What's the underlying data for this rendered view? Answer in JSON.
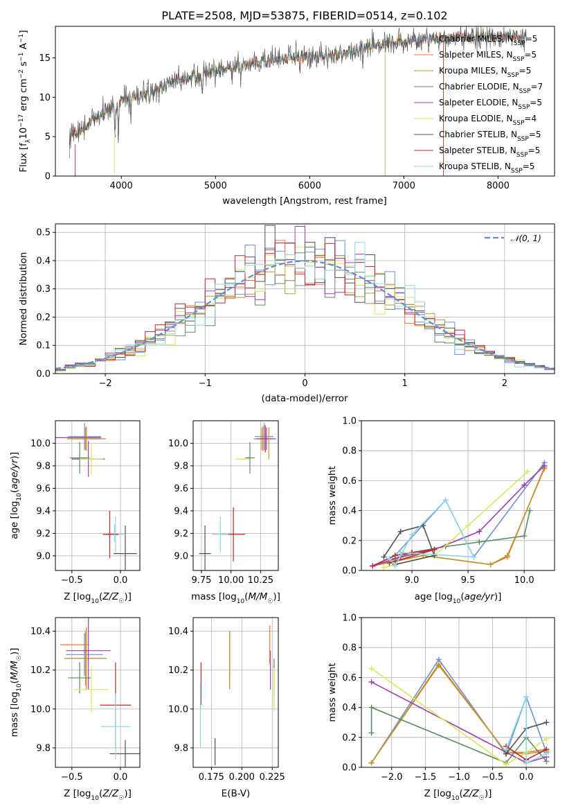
{
  "figure_title": "PLATE=2508, MJD=53875, FIBERID=0514, z=0.102",
  "colors": {
    "Chabrier MILES": "#6a8fd8",
    "Salpeter MILES": "#e57a38",
    "Kroupa MILES": "#b89a30",
    "Chabrier ELODIE": "#5c8a5c",
    "Salpeter ELODIE": "#9a3fb0",
    "Kroupa ELODIE": "#d7e85a",
    "Chabrier STELIB": "#505050",
    "Salpeter STELIB": "#c0262b",
    "Kroupa STELIB": "#8dd8e0",
    "normal_curve": "#5b8ed6",
    "grid": "#b0b0b0"
  },
  "chart_data": [
    {
      "id": "spectrum",
      "type": "line",
      "title": "PLATE=2508, MJD=53875, FIBERID=0514, z=0.102",
      "xlabel": "wavelength [Angstrom, rest frame]",
      "ylabel": "Flux [f_λ 10^-17 erg cm^-2 s^-1 A^-1]",
      "xlim": [
        3300,
        8600
      ],
      "ylim": [
        0,
        19
      ],
      "xticks": [
        4000,
        5000,
        6000,
        7000,
        8000
      ],
      "yticks": [
        0,
        5,
        10,
        15
      ],
      "grid": false,
      "legend": "upper right",
      "series": [
        {
          "name": "Chabrier MILES, N_SSP=5"
        },
        {
          "name": "Salpeter MILES, N_SSP=5"
        },
        {
          "name": "Kroupa MILES, N_SSP=5"
        },
        {
          "name": "Chabrier ELODIE, N_SSP=7"
        },
        {
          "name": "Salpeter ELODIE, N_SSP=5"
        },
        {
          "name": "Kroupa ELODIE, N_SSP=4"
        },
        {
          "name": "Chabrier STELIB, N_SSP=5"
        },
        {
          "name": "Salpeter STELIB, N_SSP=5"
        },
        {
          "name": "Kroupa STELIB, N_SSP=5"
        }
      ],
      "continuum": {
        "wavelength": [
          3450,
          3600,
          3800,
          4000,
          4200,
          4500,
          4800,
          5000,
          5200,
          5500,
          5800,
          6000,
          6300,
          6600,
          6800,
          7000,
          7200,
          7400,
          7600,
          7800,
          8100,
          8300
        ],
        "flux": [
          5.0,
          6.0,
          8.0,
          9.5,
          10.2,
          11.8,
          12.8,
          13.3,
          14.0,
          14.6,
          15.0,
          15.2,
          15.4,
          16.2,
          16.8,
          17.0,
          17.3,
          17.5,
          17.6,
          17.7,
          17.8,
          17.8
        ]
      },
      "absorption_lines": [
        3934,
        3969,
        4102,
        4304,
        4341,
        4861,
        5175,
        5270,
        5893,
        6563
      ]
    },
    {
      "id": "residuals",
      "type": "line",
      "xlabel": "(data-model)/error",
      "ylabel": "Normed distribution",
      "xlim": [
        -2.5,
        2.5
      ],
      "ylim": [
        0,
        0.53
      ],
      "xticks": [
        -2,
        -1,
        0,
        1,
        2
      ],
      "yticks": [
        0.0,
        0.1,
        0.2,
        0.3,
        0.4,
        0.5
      ],
      "grid": true,
      "legend": "upper right",
      "reference": {
        "name": "𝒩(0, 1)",
        "style": "dashed"
      },
      "bin_width": 0.1
    },
    {
      "id": "age_vs_Z",
      "type": "scatter",
      "xlabel": "Z [log10(Z/Z☉)]",
      "ylabel": "age [log10(age/yr)]",
      "xlim": [
        -0.67,
        0.2
      ],
      "ylim": [
        8.87,
        10.2
      ],
      "xticks": [
        -0.5,
        0.0
      ],
      "yticks": [
        9.0,
        9.2,
        9.4,
        9.6,
        9.8,
        10.0
      ],
      "grid": true,
      "points": [
        {
          "series": "Chabrier MILES",
          "x": -0.37,
          "y": 10.06,
          "xerr": 0.17,
          "yerr": 0.12
        },
        {
          "series": "Salpeter MILES",
          "x": -0.35,
          "y": 10.04,
          "xerr": 0.2,
          "yerr": 0.11
        },
        {
          "series": "Kroupa MILES",
          "x": -0.36,
          "y": 10.04,
          "xerr": 0.18,
          "yerr": 0.1
        },
        {
          "series": "Chabrier ELODIE",
          "x": -0.42,
          "y": 9.87,
          "xerr": 0.1,
          "yerr": 0.14
        },
        {
          "series": "Salpeter ELODIE",
          "x": -0.33,
          "y": 9.86,
          "xerr": 0.17,
          "yerr": 0.16
        },
        {
          "series": "Kroupa ELODIE",
          "x": -0.3,
          "y": 9.86,
          "xerr": 0.12,
          "yerr": 0.14
        },
        {
          "series": "Chabrier STELIB",
          "x": 0.05,
          "y": 9.02,
          "xerr": 0.12,
          "yerr": 0.25
        },
        {
          "series": "Salpeter STELIB",
          "x": -0.11,
          "y": 9.19,
          "xerr": 0.04,
          "yerr": 0.21
        },
        {
          "series": "Kroupa STELIB",
          "x": -0.05,
          "y": 9.19,
          "xerr": 0.1,
          "yerr": 0.16
        },
        {
          "series": "Salpeter STELIB (wide)",
          "x": -0.1,
          "y": 9.19,
          "xerr": 0.08,
          "yerr": 0.0
        },
        {
          "series": "Salpeter ELODIE (wide)",
          "x": -0.45,
          "y": 10.05,
          "xerr": 0.25,
          "yerr": 0.0
        },
        {
          "series": "Kroupa STELIB (vert)",
          "x": -0.06,
          "y": 9.2,
          "xerr": 0.0,
          "yerr": 0.08
        }
      ]
    },
    {
      "id": "age_vs_mass",
      "type": "scatter",
      "xlabel": "mass [log10(M/M☉)]",
      "ylabel": "",
      "xlim": [
        9.68,
        10.4
      ],
      "ylim": [
        8.87,
        10.2
      ],
      "xticks": [
        9.75,
        10.0,
        10.25
      ],
      "yticks": [
        9.0,
        9.2,
        9.4,
        9.6,
        9.8,
        10.0
      ],
      "grid": true,
      "points": [
        {
          "series": "Chabrier MILES",
          "x": 10.28,
          "y": 10.06,
          "xerr": 0.08,
          "yerr": 0.12
        },
        {
          "series": "Salpeter MILES",
          "x": 10.27,
          "y": 10.04,
          "xerr": 0.08,
          "yerr": 0.11
        },
        {
          "series": "Kroupa MILES",
          "x": 10.26,
          "y": 10.04,
          "xerr": 0.06,
          "yerr": 0.1
        },
        {
          "series": "Chabrier ELODIE",
          "x": 10.16,
          "y": 9.87,
          "xerr": 0.04,
          "yerr": 0.14
        },
        {
          "series": "Salpeter ELODIE",
          "x": 10.3,
          "y": 10.04,
          "xerr": 0.08,
          "yerr": 0.1
        },
        {
          "series": "Kroupa ELODIE",
          "x": 10.1,
          "y": 9.86,
          "xerr": 0.06,
          "yerr": 0.0
        },
        {
          "series": "Chabrier STELIB",
          "x": 9.78,
          "y": 9.02,
          "xerr": 0.05,
          "yerr": 0.25
        },
        {
          "series": "Salpeter STELIB",
          "x": 10.02,
          "y": 9.19,
          "xerr": 0.1,
          "yerr": 0.24
        },
        {
          "series": "Kroupa STELIB",
          "x": 9.91,
          "y": 9.19,
          "xerr": 0.07,
          "yerr": 0.16
        },
        {
          "series": "Salpeter STELIB (b)",
          "x": 10.29,
          "y": 10.04,
          "xerr": 0.0,
          "yerr": 0.12
        },
        {
          "series": "Kroupa MILES (b)",
          "x": 10.32,
          "y": 10.0,
          "xerr": 0.0,
          "yerr": 0.14
        }
      ]
    },
    {
      "id": "massweight_vs_age",
      "type": "line",
      "xlabel": "age [log10(age/yr)]",
      "ylabel": "mass weight",
      "xlim": [
        8.55,
        10.27
      ],
      "ylim": [
        0.0,
        1.0
      ],
      "xticks": [
        9.0,
        9.5,
        10.0
      ],
      "yticks": [
        0.0,
        0.2,
        0.4,
        0.6,
        0.8,
        1.0
      ],
      "grid": true,
      "series": [
        {
          "name": "Chabrier MILES",
          "x": [
            8.65,
            8.85,
            9.3,
            9.55,
            10.18
          ],
          "y": [
            0.03,
            0.1,
            0.47,
            0.09,
            0.72
          ]
        },
        {
          "name": "Salpeter MILES",
          "x": [
            8.65,
            8.85,
            9.1,
            9.7,
            9.85,
            10.18
          ],
          "y": [
            0.03,
            0.06,
            0.1,
            0.04,
            0.09,
            0.69
          ]
        },
        {
          "name": "Kroupa MILES",
          "x": [
            8.65,
            8.87,
            9.1,
            9.7,
            9.85,
            10.18
          ],
          "y": [
            0.03,
            0.07,
            0.1,
            0.04,
            0.1,
            0.68
          ]
        },
        {
          "name": "Chabrier ELODIE",
          "x": [
            8.65,
            8.85,
            9.0,
            9.3,
            9.6,
            10.0,
            10.05
          ],
          "y": [
            0.03,
            0.08,
            0.12,
            0.16,
            0.19,
            0.23,
            0.4
          ]
        },
        {
          "name": "Salpeter ELODIE",
          "x": [
            8.65,
            8.9,
            9.2,
            9.6,
            10.0,
            10.18
          ],
          "y": [
            0.03,
            0.09,
            0.14,
            0.26,
            0.57,
            0.7
          ]
        },
        {
          "name": "Kroupa ELODIE",
          "x": [
            8.75,
            9.2,
            9.5,
            10.03
          ],
          "y": [
            0.02,
            0.1,
            0.3,
            0.66
          ]
        },
        {
          "name": "Chabrier STELIB",
          "x": [
            8.75,
            8.9,
            9.1,
            9.2,
            8.85
          ],
          "y": [
            0.09,
            0.26,
            0.3,
            0.1,
            0.04
          ]
        },
        {
          "name": "Salpeter STELIB",
          "x": [
            8.65,
            8.85,
            9.0,
            9.2,
            8.8
          ],
          "y": [
            0.03,
            0.1,
            0.12,
            0.14,
            0.05
          ]
        },
        {
          "name": "Kroupa STELIB",
          "x": [
            8.8,
            8.85,
            9.0,
            9.3,
            9.55,
            8.9
          ],
          "y": [
            0.08,
            0.03,
            0.24,
            0.47,
            0.09,
            0.12
          ]
        }
      ]
    },
    {
      "id": "mass_vs_Z",
      "type": "scatter",
      "xlabel": "Z [log10(Z/Z☉)]",
      "ylabel": "mass [log10(M/M☉)]",
      "xlim": [
        -0.67,
        0.2
      ],
      "ylim": [
        9.7,
        10.47
      ],
      "xticks": [
        -0.5,
        0.0
      ],
      "yticks": [
        9.8,
        10.0,
        10.2,
        10.4
      ],
      "grid": true,
      "points": [
        {
          "series": "Chabrier MILES",
          "x": -0.37,
          "y": 10.28,
          "xerr": 0.19,
          "yerr": 0.11
        },
        {
          "series": "Salpeter MILES",
          "x": -0.35,
          "y": 10.26,
          "xerr": 0.2,
          "yerr": 0.16
        },
        {
          "series": "Kroupa MILES",
          "x": -0.36,
          "y": 10.26,
          "xerr": 0.22,
          "yerr": 0.14
        },
        {
          "series": "Chabrier ELODIE",
          "x": -0.42,
          "y": 10.16,
          "xerr": 0.12,
          "yerr": 0.08
        },
        {
          "series": "Salpeter ELODIE",
          "x": -0.33,
          "y": 10.3,
          "xerr": 0.23,
          "yerr": 0.2
        },
        {
          "series": "Kroupa ELODIE",
          "x": -0.3,
          "y": 10.1,
          "xerr": 0.18,
          "yerr": 0.12
        },
        {
          "series": "Chabrier STELIB",
          "x": 0.05,
          "y": 9.77,
          "xerr": 0.16,
          "yerr": 0.07
        },
        {
          "series": "Salpeter STELIB",
          "x": -0.05,
          "y": 10.02,
          "xerr": 0.16,
          "yerr": 0.22
        },
        {
          "series": "Kroupa STELIB",
          "x": -0.05,
          "y": 9.91,
          "xerr": 0.15,
          "yerr": 0.17
        },
        {
          "series": "Salpeter MILES (b)",
          "x": -0.47,
          "y": 10.33,
          "xerr": 0.15,
          "yerr": 0.0
        }
      ]
    },
    {
      "id": "mass_vs_ebv",
      "type": "scatter",
      "xlabel": "E(B-V)",
      "ylabel": "",
      "xlim": [
        0.16,
        0.23
      ],
      "ylim": [
        9.7,
        10.47
      ],
      "xticks": [
        0.175,
        0.2,
        0.225
      ],
      "yticks": [
        9.8,
        10.0,
        10.2,
        10.4
      ],
      "grid": true,
      "points": [
        {
          "series": "Chabrier MILES",
          "x": 0.19,
          "y": 10.28,
          "xerr": 0.0,
          "yerr": 0.12
        },
        {
          "series": "Salpeter MILES",
          "x": 0.19,
          "y": 10.25,
          "xerr": 0.0,
          "yerr": 0.15
        },
        {
          "series": "Kroupa MILES",
          "x": 0.19,
          "y": 10.24,
          "xerr": 0.0,
          "yerr": 0.13
        },
        {
          "series": "Chabrier ELODIE",
          "x": 0.2265,
          "y": 10.16,
          "xerr": 0.0,
          "yerr": 0.1
        },
        {
          "series": "Salpeter ELODIE",
          "x": 0.2235,
          "y": 10.2,
          "xerr": 0.0,
          "yerr": 0.1
        },
        {
          "series": "Kroupa ELODIE",
          "x": 0.2265,
          "y": 10.1,
          "xerr": 0.0,
          "yerr": 0.11
        },
        {
          "series": "Chabrier STELIB",
          "x": 0.178,
          "y": 9.78,
          "xerr": 0.0,
          "yerr": 0.07
        },
        {
          "series": "Salpeter STELIB",
          "x": 0.1665,
          "y": 10.13,
          "xerr": 0.0,
          "yerr": 0.11
        },
        {
          "series": "Kroupa STELIB",
          "x": 0.166,
          "y": 9.97,
          "xerr": 0.0,
          "yerr": 0.17
        },
        {
          "series": "Salpeter MILES (b)",
          "x": 0.223,
          "y": 10.33,
          "xerr": 0.0,
          "yerr": 0.1
        }
      ]
    },
    {
      "id": "massweight_vs_Z",
      "type": "line",
      "xlabel": "Z [log10(Z/Z☉)]",
      "ylabel": "mass weight",
      "xlim": [
        -2.45,
        0.42
      ],
      "ylim": [
        0.0,
        1.0
      ],
      "xticks": [
        -2.0,
        -1.5,
        -1.0,
        -0.5,
        0.0
      ],
      "yticks": [
        0.0,
        0.2,
        0.4,
        0.6,
        0.8,
        1.0
      ],
      "grid": true,
      "series": [
        {
          "name": "Chabrier MILES",
          "x": [
            -2.3,
            -1.3,
            -0.3,
            0.0,
            0.3
          ],
          "y": [
            0.03,
            0.72,
            0.09,
            0.47,
            0.1
          ]
        },
        {
          "name": "Salpeter MILES",
          "x": [
            -2.3,
            -1.3,
            -0.3,
            0.0,
            0.3
          ],
          "y": [
            0.03,
            0.69,
            0.1,
            0.1,
            0.12
          ]
        },
        {
          "name": "Kroupa MILES",
          "x": [
            -2.3,
            -1.3,
            -0.3,
            0.0,
            0.3
          ],
          "y": [
            0.03,
            0.68,
            0.1,
            0.09,
            0.11
          ]
        },
        {
          "name": "Chabrier ELODIE",
          "x": [
            -2.3,
            -2.3,
            -0.3,
            0.0,
            0.3
          ],
          "y": [
            0.23,
            0.4,
            0.03,
            0.2,
            0.04
          ]
        },
        {
          "name": "Salpeter ELODIE",
          "x": [
            -2.3,
            0.0,
            0.3
          ],
          "y": [
            0.57,
            0.03,
            0.07
          ]
        },
        {
          "name": "Kroupa ELODIE",
          "x": [
            -2.3,
            -0.3,
            0.0,
            0.3
          ],
          "y": [
            0.66,
            0.02,
            0.1,
            0.19
          ]
        },
        {
          "name": "Chabrier STELIB",
          "x": [
            -0.3,
            0.0,
            0.3
          ],
          "y": [
            0.09,
            0.26,
            0.3
          ]
        },
        {
          "name": "Salpeter STELIB",
          "x": [
            -0.3,
            0.0,
            0.3
          ],
          "y": [
            0.14,
            0.05,
            0.12
          ]
        },
        {
          "name": "Kroupa STELIB",
          "x": [
            -0.3,
            0.0,
            0.0,
            0.3
          ],
          "y": [
            0.12,
            0.47,
            0.03,
            0.09
          ]
        }
      ]
    }
  ]
}
